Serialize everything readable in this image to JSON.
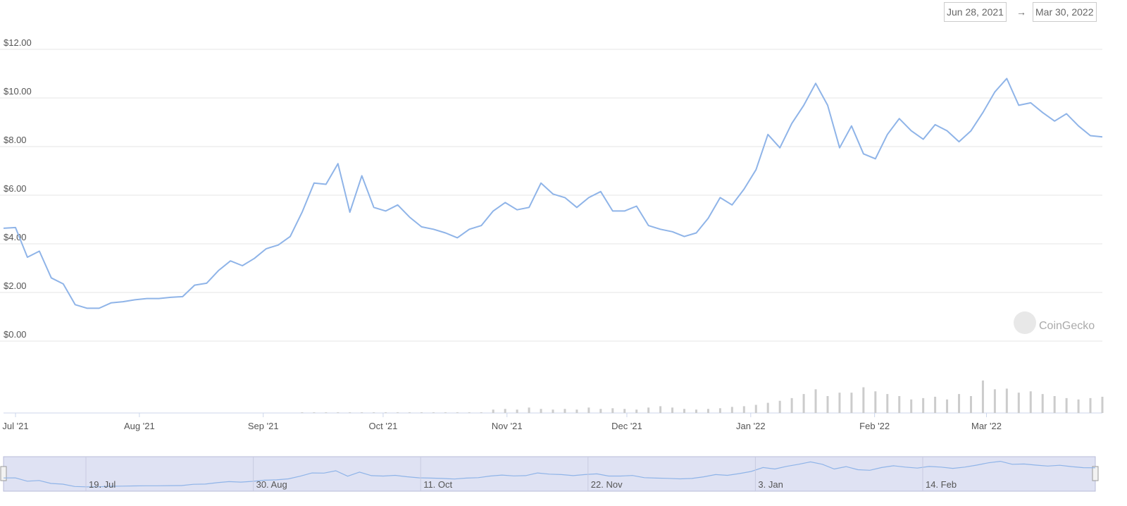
{
  "range": {
    "start": "Jun 28, 2021",
    "arrow": "→",
    "end": "Mar 30, 2022"
  },
  "watermark": "CoinGecko",
  "chart_data": {
    "type": "line",
    "color": "#8fb4e8",
    "values": [
      4.64,
      4.67,
      3.45,
      3.7,
      2.6,
      2.35,
      1.5,
      1.35,
      1.35,
      1.57,
      1.62,
      1.7,
      1.75,
      1.75,
      1.8,
      1.83,
      2.3,
      2.38,
      2.9,
      3.3,
      3.1,
      3.4,
      3.8,
      3.95,
      4.3,
      5.3,
      6.5,
      6.45,
      7.3,
      5.3,
      6.8,
      5.5,
      5.35,
      5.6,
      5.1,
      4.7,
      4.6,
      4.45,
      4.25,
      4.6,
      4.75,
      5.35,
      5.7,
      5.4,
      5.5,
      6.5,
      6.05,
      5.9,
      5.5,
      5.9,
      6.15,
      5.35,
      5.35,
      5.55,
      4.75,
      4.6,
      4.5,
      4.3,
      4.45,
      5.05,
      5.9,
      5.6,
      6.25,
      7.05,
      8.5,
      7.95,
      8.95,
      9.7,
      10.6,
      9.7,
      7.95,
      8.85,
      7.7,
      7.5,
      8.5,
      9.15,
      8.65,
      8.3,
      8.9,
      8.65,
      8.2,
      8.65,
      9.4,
      10.25,
      10.8,
      9.7,
      9.8,
      9.4,
      9.05,
      9.35,
      8.85,
      8.45,
      8.4
    ],
    "volume_color": "#cccccc",
    "volume_ylim": [
      0,
      50
    ],
    "volume_values": [
      0,
      0,
      0,
      0,
      0,
      0,
      0,
      0,
      0,
      0,
      0,
      0,
      0,
      0,
      0,
      0,
      0,
      0,
      0,
      0,
      0,
      0,
      0,
      0,
      0,
      1,
      1,
      1,
      1,
      1,
      1,
      1,
      1,
      1,
      1,
      1,
      1,
      1,
      1,
      1,
      1,
      5,
      6,
      5,
      8,
      6,
      5,
      6,
      5,
      8,
      6,
      7,
      6,
      5,
      8,
      10,
      8,
      6,
      5,
      6,
      7,
      9,
      10,
      12,
      15,
      18,
      22,
      28,
      35,
      25,
      30,
      30,
      38,
      32,
      28,
      25,
      20,
      22,
      24,
      20,
      28,
      25,
      48,
      35,
      36,
      30,
      32,
      28,
      25,
      22,
      20,
      22,
      24
    ],
    "ylim": [
      0,
      12
    ],
    "yticks": [
      {
        "value": 0,
        "label": "$0.00"
      },
      {
        "value": 2,
        "label": "$2.00"
      },
      {
        "value": 4,
        "label": "$4.00"
      },
      {
        "value": 6,
        "label": "$6.00"
      },
      {
        "value": 8,
        "label": "$8.00"
      },
      {
        "value": 10,
        "label": "$10.00"
      },
      {
        "value": 12,
        "label": "$12.00"
      }
    ],
    "xticks": [
      {
        "value": "2021-07",
        "label": "Jul '21"
      },
      {
        "value": "2021-08",
        "label": "Aug '21"
      },
      {
        "value": "2021-09",
        "label": "Sep '21"
      },
      {
        "value": "2021-10",
        "label": "Oct '21"
      },
      {
        "value": "2021-11",
        "label": "Nov '21"
      },
      {
        "value": "2021-12",
        "label": "Dec '21"
      },
      {
        "value": "2022-01",
        "label": "Jan '22"
      },
      {
        "value": "2022-02",
        "label": "Feb '22"
      },
      {
        "value": "2022-03",
        "label": "Mar '22"
      }
    ],
    "navigator_ticks": [
      "19. Jul",
      "30. Aug",
      "11. Oct",
      "22. Nov",
      "3. Jan",
      "14. Feb"
    ],
    "grid": true
  }
}
